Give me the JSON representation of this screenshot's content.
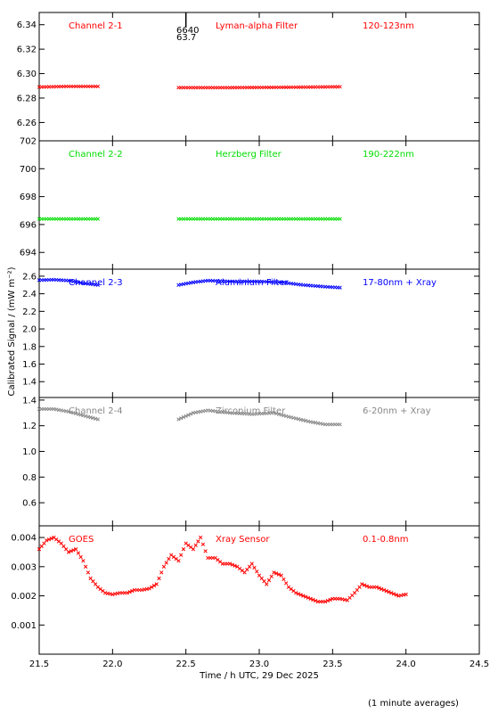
{
  "chart_data": {
    "type": "scatter",
    "xlabel": "Time / h UTC, 29 Dec 2025",
    "ylabel": "Calibrated Signal / (mW m⁻²)",
    "footnote": "(1 minute averages)",
    "xlim": [
      21.5,
      24.5
    ],
    "xticks": [
      "21.5",
      "22.0",
      "22.5",
      "23.0",
      "23.5",
      "24.0",
      "24.5"
    ],
    "top_marker": {
      "x": 22.5,
      "labels": [
        "6640",
        "63.7"
      ]
    },
    "panels": [
      {
        "labels": [
          "Channel 2-1",
          "Lyman-alpha Filter",
          "120-123nm"
        ],
        "color": "#ff0000",
        "ylim": [
          6.245,
          6.35
        ],
        "yticks": [
          "6.26",
          "6.28",
          "6.30",
          "6.32",
          "6.34"
        ],
        "segments": [
          {
            "x_start": 21.5,
            "x_end": 21.9,
            "points": [
              [
                21.5,
                6.289
              ],
              [
                21.7,
                6.2895
              ],
              [
                21.9,
                6.2895
              ]
            ]
          },
          {
            "x_start": 22.45,
            "x_end": 23.55,
            "points": [
              [
                22.45,
                6.2885
              ],
              [
                22.8,
                6.2885
              ],
              [
                23.2,
                6.2888
              ],
              [
                23.55,
                6.2892
              ]
            ]
          }
        ]
      },
      {
        "labels": [
          "Channel 2-2",
          "Herzberg Filter",
          "190-222nm"
        ],
        "color": "#00dd00",
        "ylim": [
          692.8,
          702.0
        ],
        "yticks": [
          "694",
          "696",
          "698",
          "700",
          "702"
        ],
        "segments": [
          {
            "x_start": 21.5,
            "x_end": 21.9,
            "points": [
              [
                21.5,
                696.4
              ],
              [
                21.9,
                696.4
              ]
            ]
          },
          {
            "x_start": 22.45,
            "x_end": 23.55,
            "points": [
              [
                22.45,
                696.4
              ],
              [
                23.55,
                696.4
              ]
            ]
          }
        ]
      },
      {
        "labels": [
          "Channel 2-3",
          "Aluminium Filter",
          "17-80nm + Xray"
        ],
        "color": "#0000ff",
        "ylim": [
          1.22,
          2.68
        ],
        "yticks": [
          "1.4",
          "1.6",
          "1.8",
          "2.0",
          "2.2",
          "2.4",
          "2.6"
        ],
        "segments": [
          {
            "x_start": 21.5,
            "x_end": 21.9,
            "points": [
              [
                21.5,
                2.555
              ],
              [
                21.6,
                2.56
              ],
              [
                21.7,
                2.55
              ],
              [
                21.8,
                2.52
              ],
              [
                21.9,
                2.5
              ]
            ]
          },
          {
            "x_start": 22.45,
            "x_end": 23.55,
            "points": [
              [
                22.45,
                2.5
              ],
              [
                22.55,
                2.53
              ],
              [
                22.65,
                2.55
              ],
              [
                22.8,
                2.54
              ],
              [
                23.0,
                2.54
              ],
              [
                23.15,
                2.53
              ],
              [
                23.3,
                2.5
              ],
              [
                23.45,
                2.48
              ],
              [
                23.55,
                2.47
              ]
            ]
          }
        ]
      },
      {
        "labels": [
          "Channel 2-4",
          "Zirconium Filter",
          "6-20nm + Xray"
        ],
        "color": "#888888",
        "ylim": [
          0.42,
          1.42
        ],
        "yticks": [
          "0.6",
          "0.8",
          "1.0",
          "1.2",
          "1.4"
        ],
        "segments": [
          {
            "x_start": 21.5,
            "x_end": 21.9,
            "points": [
              [
                21.5,
                1.33
              ],
              [
                21.6,
                1.33
              ],
              [
                21.7,
                1.31
              ],
              [
                21.8,
                1.28
              ],
              [
                21.9,
                1.25
              ]
            ]
          },
          {
            "x_start": 22.45,
            "x_end": 23.55,
            "points": [
              [
                22.45,
                1.25
              ],
              [
                22.55,
                1.3
              ],
              [
                22.65,
                1.32
              ],
              [
                22.8,
                1.3
              ],
              [
                22.95,
                1.29
              ],
              [
                23.1,
                1.3
              ],
              [
                23.2,
                1.27
              ],
              [
                23.35,
                1.23
              ],
              [
                23.45,
                1.21
              ],
              [
                23.55,
                1.21
              ]
            ]
          }
        ]
      },
      {
        "labels": [
          "GOES",
          "Xray Sensor",
          "0.1-0.8nm"
        ],
        "color": "#ff0000",
        "ylim": [
          0.0,
          0.0044
        ],
        "yticks": [
          "0.001",
          "0.002",
          "0.003",
          "0.004"
        ],
        "segments": [
          {
            "x_start": 21.5,
            "x_end": 24.0,
            "points": [
              [
                21.5,
                0.0036
              ],
              [
                21.55,
                0.0039
              ],
              [
                21.6,
                0.004
              ],
              [
                21.65,
                0.0038
              ],
              [
                21.7,
                0.0035
              ],
              [
                21.75,
                0.0036
              ],
              [
                21.8,
                0.0032
              ],
              [
                21.85,
                0.0026
              ],
              [
                21.9,
                0.0023
              ],
              [
                21.95,
                0.0021
              ],
              [
                22.0,
                0.00205
              ],
              [
                22.05,
                0.0021
              ],
              [
                22.1,
                0.0021
              ],
              [
                22.15,
                0.0022
              ],
              [
                22.2,
                0.0022
              ],
              [
                22.25,
                0.00225
              ],
              [
                22.3,
                0.0024
              ],
              [
                22.35,
                0.003
              ],
              [
                22.4,
                0.0034
              ],
              [
                22.45,
                0.0032
              ],
              [
                22.5,
                0.0038
              ],
              [
                22.55,
                0.0036
              ],
              [
                22.6,
                0.004
              ],
              [
                22.65,
                0.0033
              ],
              [
                22.7,
                0.0033
              ],
              [
                22.75,
                0.0031
              ],
              [
                22.8,
                0.0031
              ],
              [
                22.85,
                0.003
              ],
              [
                22.9,
                0.0028
              ],
              [
                22.95,
                0.0031
              ],
              [
                23.0,
                0.0027
              ],
              [
                23.05,
                0.0024
              ],
              [
                23.1,
                0.0028
              ],
              [
                23.15,
                0.0027
              ],
              [
                23.2,
                0.0023
              ],
              [
                23.25,
                0.0021
              ],
              [
                23.3,
                0.002
              ],
              [
                23.35,
                0.0019
              ],
              [
                23.4,
                0.0018
              ],
              [
                23.45,
                0.0018
              ],
              [
                23.5,
                0.0019
              ],
              [
                23.55,
                0.0019
              ],
              [
                23.6,
                0.00185
              ],
              [
                23.65,
                0.0021
              ],
              [
                23.7,
                0.0024
              ],
              [
                23.75,
                0.0023
              ],
              [
                23.8,
                0.0023
              ],
              [
                23.85,
                0.0022
              ],
              [
                23.9,
                0.0021
              ],
              [
                23.95,
                0.002
              ],
              [
                24.0,
                0.00205
              ]
            ]
          }
        ]
      }
    ]
  }
}
